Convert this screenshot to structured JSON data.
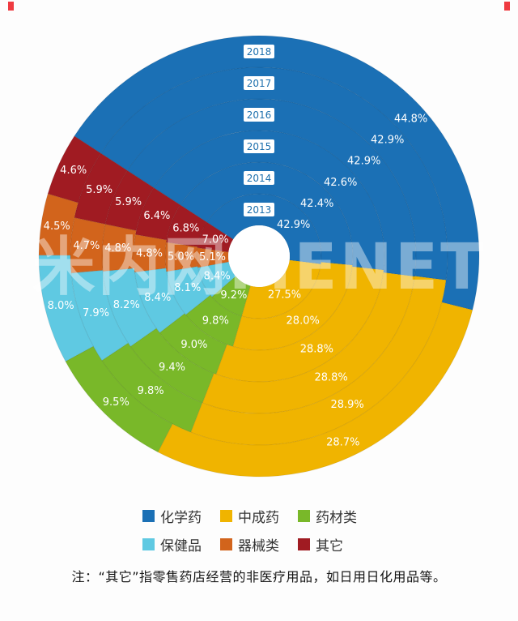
{
  "chart_data": {
    "type": "pie",
    "variant": "nested-donut-rings-by-year",
    "unit": "%",
    "years": [
      "2013",
      "2014",
      "2015",
      "2016",
      "2017",
      "2018"
    ],
    "series": [
      {
        "name": "化学药",
        "color": "#1b70b5",
        "values": [
          42.9,
          42.4,
          42.6,
          42.9,
          42.9,
          44.8
        ]
      },
      {
        "name": "中成药",
        "color": "#f0b400",
        "values": [
          27.5,
          28.0,
          28.8,
          28.8,
          28.9,
          28.7
        ]
      },
      {
        "name": "药材类",
        "color": "#79b829",
        "values": [
          9.2,
          9.8,
          9.0,
          9.4,
          9.8,
          9.5
        ]
      },
      {
        "name": "保健品",
        "color": "#5fc9e2",
        "values": [
          8.4,
          8.1,
          8.4,
          8.2,
          7.9,
          8.0
        ]
      },
      {
        "name": "器械类",
        "color": "#d2641c",
        "values": [
          5.1,
          5.0,
          4.8,
          4.8,
          4.7,
          4.5
        ]
      },
      {
        "name": "其它",
        "color": "#a01b22",
        "values": [
          7.0,
          6.8,
          6.4,
          5.9,
          5.9,
          4.6
        ]
      }
    ],
    "layout": {
      "start_angle_deg": -57,
      "clockwise": true,
      "center_x": 320,
      "center_y": 316,
      "hole_radius": 38,
      "ring_width": 39,
      "chemical_label_angle_deg": 48,
      "year_label_color": "#1c6fad",
      "legend_position": "bottom",
      "grid": false
    }
  },
  "watermark": "米内网MENET",
  "note": "注：“其它”指零售药店经营的非医疗用品，如日用日化用品等。"
}
